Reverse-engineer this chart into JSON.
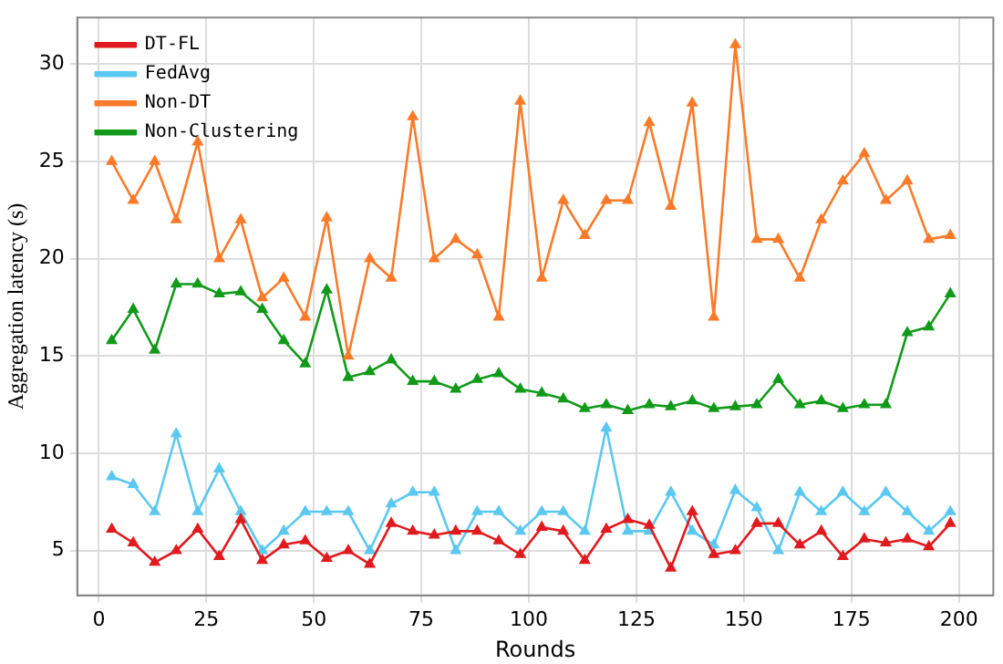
{
  "chart_data": {
    "type": "line",
    "xlabel": "Rounds",
    "ylabel": "Aggregation latency (s)",
    "x": [
      3,
      8,
      13,
      18,
      23,
      28,
      33,
      38,
      43,
      48,
      53,
      58,
      63,
      68,
      73,
      78,
      83,
      88,
      93,
      98,
      103,
      108,
      113,
      118,
      123,
      128,
      133,
      138,
      143,
      148,
      153,
      158,
      163,
      168,
      173,
      178,
      183,
      188,
      193,
      198
    ],
    "series": [
      {
        "name": "DT-FL",
        "color": "#e01b1f",
        "values": [
          6.1,
          5.4,
          4.4,
          5.0,
          6.1,
          4.7,
          6.6,
          4.5,
          5.3,
          5.5,
          4.6,
          5.0,
          4.3,
          6.4,
          6.0,
          5.8,
          6.0,
          6.0,
          5.5,
          4.8,
          6.2,
          6.0,
          4.5,
          6.1,
          6.6,
          6.3,
          4.1,
          7.0,
          4.8,
          5.0,
          6.4,
          6.4,
          5.3,
          6.0,
          4.7,
          5.6,
          5.4,
          5.6,
          5.2,
          6.4
        ]
      },
      {
        "name": "FedAvg",
        "color": "#5bc8f0",
        "values": [
          8.8,
          8.4,
          7.0,
          11.0,
          7.0,
          9.2,
          7.0,
          5.0,
          6.0,
          7.0,
          7.0,
          7.0,
          5.0,
          7.4,
          8.0,
          8.0,
          5.0,
          7.0,
          7.0,
          6.0,
          7.0,
          7.0,
          6.0,
          11.3,
          6.0,
          6.0,
          8.0,
          6.0,
          5.3,
          8.1,
          7.2,
          5.0,
          8.0,
          7.0,
          8.0,
          7.0,
          8.0,
          7.0,
          6.0,
          7.0
        ]
      },
      {
        "name": "Non-DT",
        "color": "#f97b2a",
        "values": [
          25,
          23,
          25,
          22,
          26,
          20,
          22,
          18,
          19,
          17,
          22.1,
          15,
          20,
          19,
          27.3,
          20,
          21,
          20.2,
          17,
          28.1,
          19,
          23,
          21.2,
          23,
          23,
          27,
          22.7,
          28,
          17,
          31,
          21,
          21,
          19,
          22,
          24,
          25.4,
          23,
          24,
          21,
          21.2
        ]
      },
      {
        "name": "Non-Clustering",
        "color": "#119a1a",
        "values": [
          15.8,
          17.4,
          15.3,
          18.7,
          18.7,
          18.2,
          18.3,
          17.4,
          15.8,
          14.6,
          18.4,
          13.9,
          14.2,
          14.8,
          13.7,
          13.7,
          13.3,
          13.8,
          14.1,
          13.3,
          13.1,
          12.8,
          12.3,
          12.5,
          12.2,
          12.5,
          12.4,
          12.7,
          12.3,
          12.4,
          12.5,
          13.8,
          12.5,
          12.7,
          12.3,
          12.5,
          12.5,
          16.2,
          16.5,
          18.2
        ]
      }
    ],
    "xlim": [
      -5,
      208
    ],
    "xticks": [
      0,
      25,
      50,
      75,
      100,
      125,
      150,
      175,
      200
    ],
    "ylim": [
      2.7,
      32.4
    ],
    "yticks": [
      5,
      10,
      15,
      20,
      25,
      30
    ],
    "grid": true,
    "legend": "top left",
    "marker": "triangle",
    "line_style": "solid"
  }
}
